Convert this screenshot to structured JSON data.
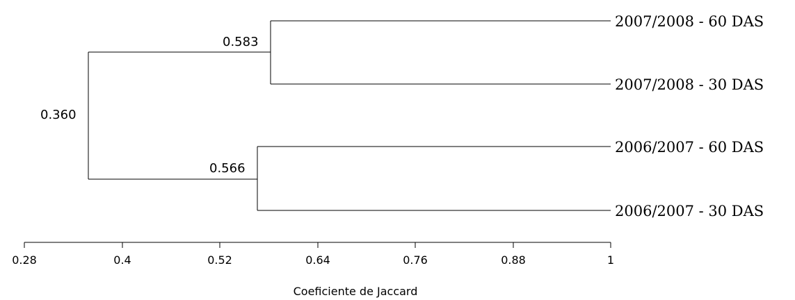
{
  "chart_data": {
    "type": "dendrogram",
    "xlabel": "Coeficiente de Jaccard",
    "xlim": [
      0.28,
      1
    ],
    "ticks": [
      "0.28",
      "0.4",
      "0.52",
      "0.64",
      "0.76",
      "0.88",
      "1"
    ],
    "tick_values": [
      0.28,
      0.4,
      0.52,
      0.64,
      0.76,
      0.88,
      1.0
    ],
    "leaves": [
      "2007/2008 - 60 DAS",
      "2007/2008 - 30 DAS",
      "2006/2007 - 60 DAS",
      "2006/2007 - 30 DAS"
    ],
    "clusters": [
      {
        "label": "0.583",
        "similarity": 0.583,
        "members": [
          0,
          1
        ]
      },
      {
        "label": "0.566",
        "similarity": 0.566,
        "members": [
          2,
          3
        ]
      },
      {
        "label": "0.360",
        "similarity": 0.36,
        "members": [
          "0.583",
          "0.566"
        ]
      }
    ]
  }
}
